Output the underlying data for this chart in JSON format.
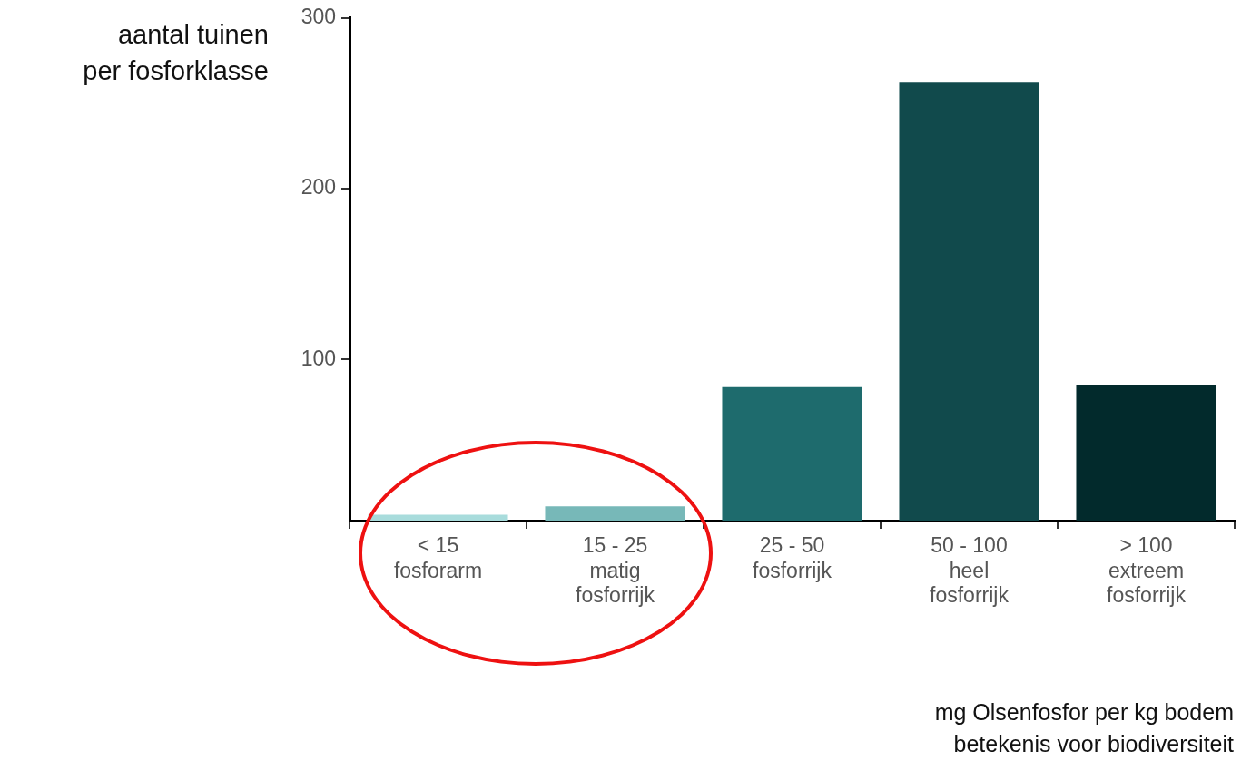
{
  "chart_data": {
    "type": "bar",
    "categories": [
      "< 15\nfosforarm",
      "15 - 25\nmatig\nfosforrijk",
      "25 - 50\nfosforrijk",
      "50 - 100\nheel\nfosforrijk",
      "> 100\nextreem\nfosforrijk"
    ],
    "values": [
      8.9,
      13.9,
      83.7,
      262.5,
      84.7
    ],
    "colors": [
      "#a8dcdc",
      "#77b8b8",
      "#1e6b6d",
      "#114a4c",
      "#022a2c"
    ],
    "ylabel": "aantal tuinen\nper fosforklasse",
    "xlabel": "mg Olsenfosfor per kg bodem\nbetekenis voor biodiversiteit",
    "ylim": [
      5.5,
      300
    ],
    "yticks": [
      100,
      200,
      300
    ],
    "grid": false,
    "legend": false
  }
}
